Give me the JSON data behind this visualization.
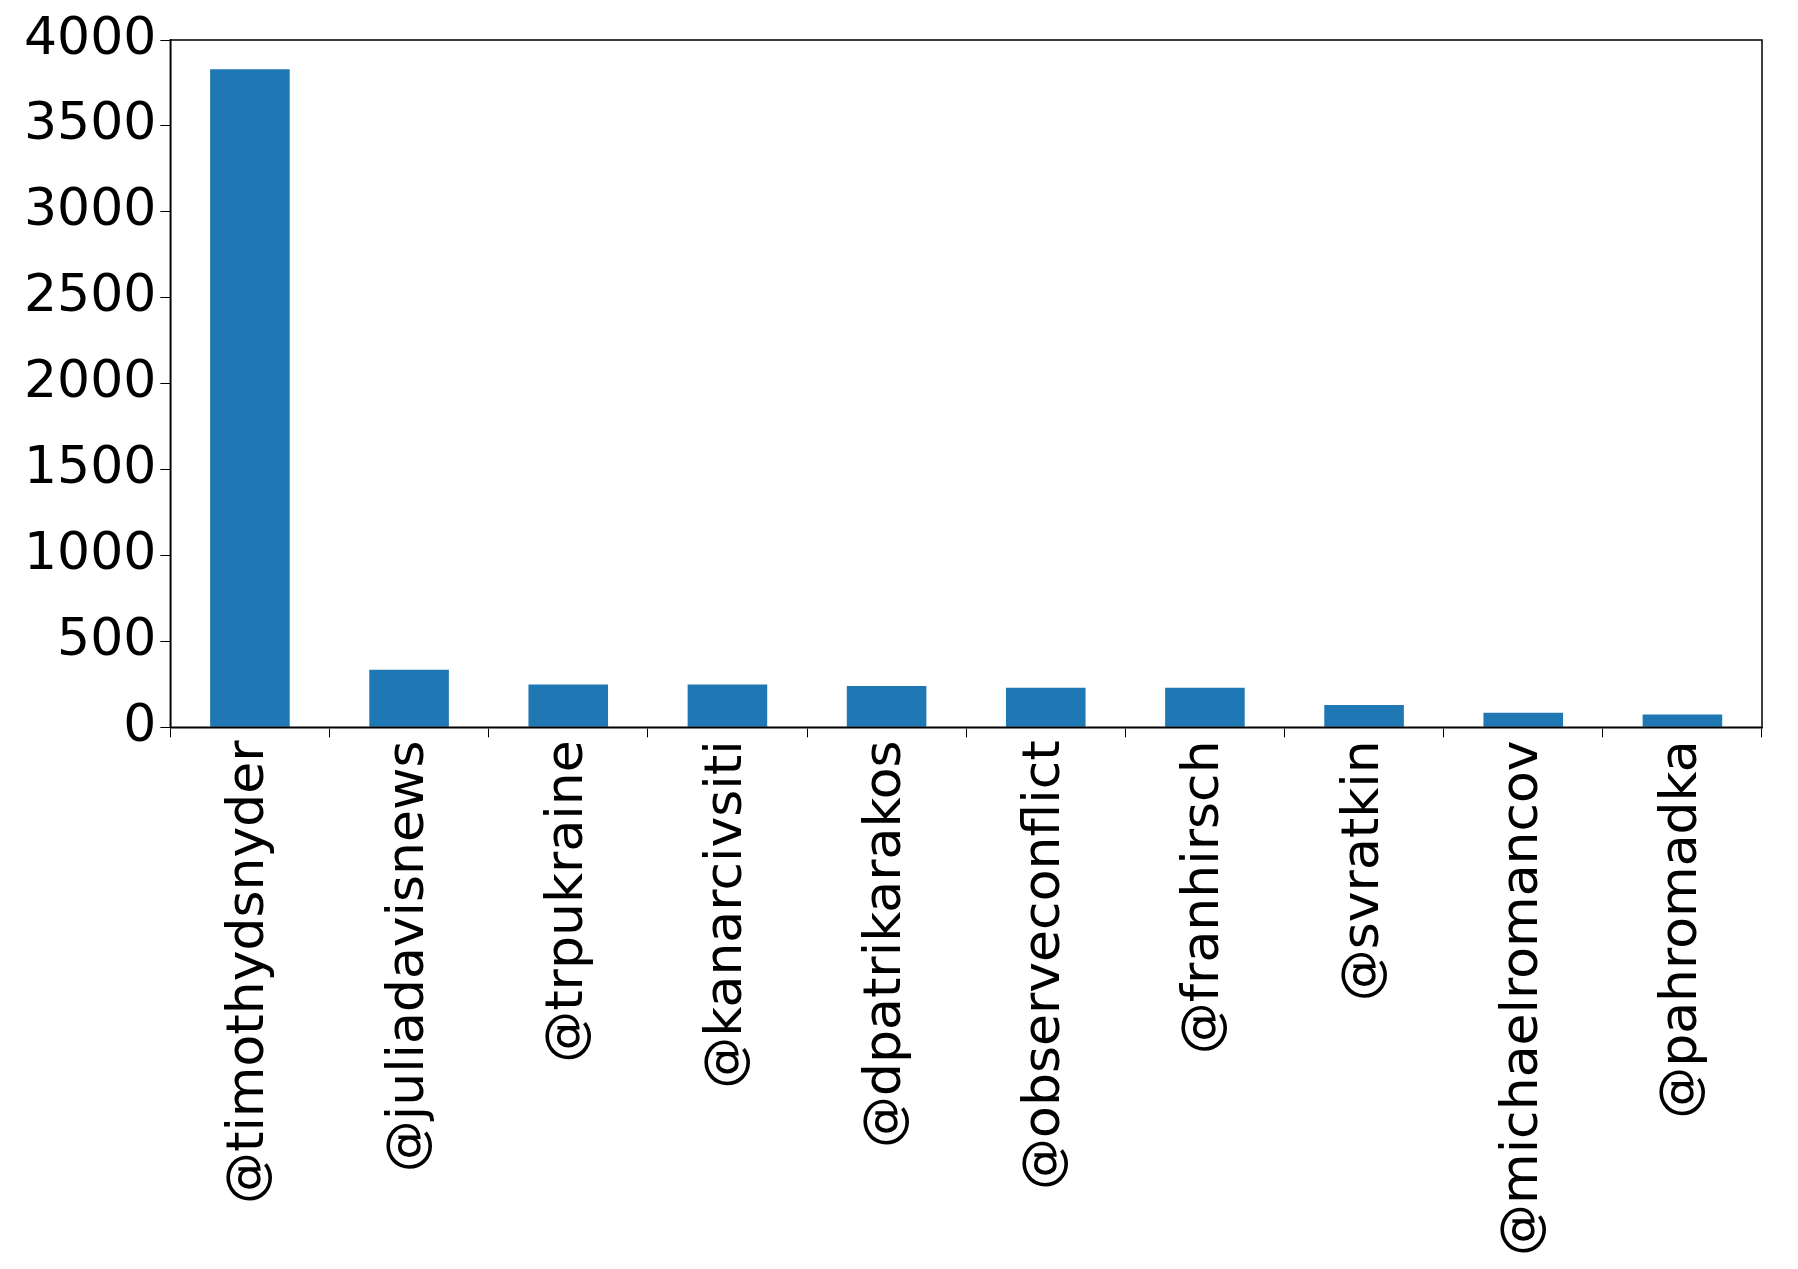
{
  "chart_data": {
    "type": "bar",
    "categories": [
      "@timothydsnyder",
      "@juliadavisnews",
      "@trpukraine",
      "@kanarcivsiti",
      "@dpatrikarakos",
      "@observeconflict",
      "@franhirsch",
      "@svratkin",
      "@michaelromancov",
      "@pahromadka"
    ],
    "values": [
      3830,
      335,
      250,
      250,
      240,
      230,
      230,
      130,
      85,
      75
    ],
    "color": "#1f77b4",
    "ylim": [
      0,
      4000
    ],
    "yticks": [
      0,
      500,
      1000,
      1500,
      2000,
      2500,
      3000,
      3500,
      4000
    ],
    "grid": false,
    "legend": false
  }
}
